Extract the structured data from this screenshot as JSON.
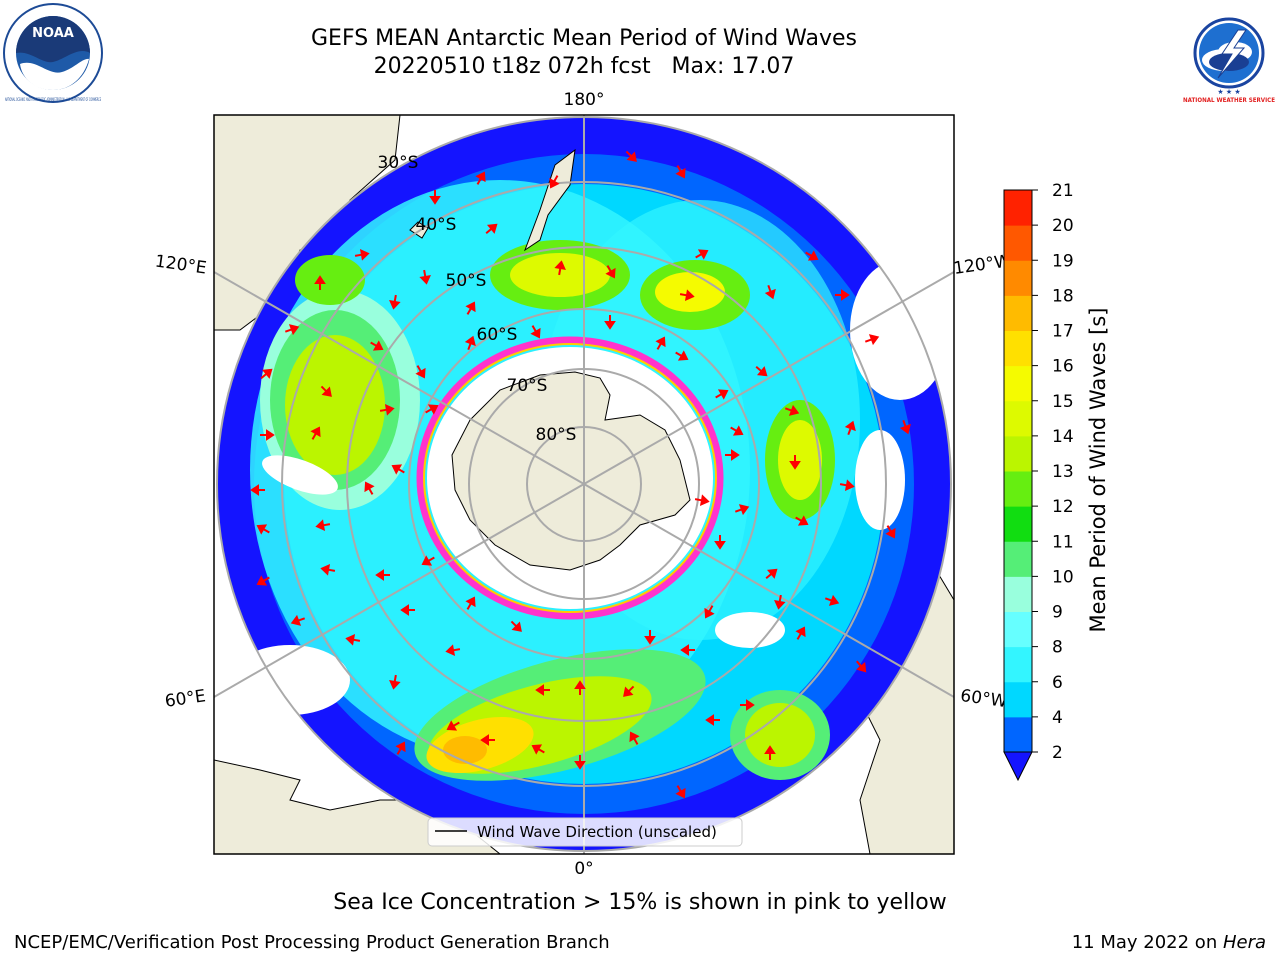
{
  "header": {
    "title_line1": "GEFS MEAN Antarctic Mean Period of Wind Waves",
    "title_line2": "20220510 t18z 072h fcst   Max: 17.07"
  },
  "logos": {
    "noaa": "NOAA",
    "noaa_ring_text": "NATIONAL OCEANIC AND ATMOSPHERIC ADMINISTRATION · U.S. DEPARTMENT OF COMMERCE",
    "nws_ring_text": "NATIONAL WEATHER SERVICE"
  },
  "map": {
    "projection": "south-polar-stereographic",
    "longitude_labels": {
      "top": "180°",
      "bottom": "0°",
      "upper_left": "120°E",
      "upper_right": "120°W",
      "lower_left": "60°E",
      "lower_right": "60°W"
    },
    "latitude_labels": [
      "30°S",
      "40°S",
      "50°S",
      "60°S",
      "70°S",
      "80°S"
    ],
    "legend": {
      "entry": "Wind Wave Direction (unscaled)"
    },
    "arrow_color": "#ff0000",
    "land_color": "#eeecda",
    "sea_ice_edge_colors": [
      "#ff33cc",
      "#ffcc00"
    ]
  },
  "colorbar": {
    "label": "Mean Period of Wind Waves [s]",
    "ticks": [
      "2",
      "4",
      "6",
      "8",
      "9",
      "10",
      "11",
      "12",
      "13",
      "14",
      "15",
      "16",
      "17",
      "18",
      "19",
      "20",
      "21"
    ],
    "colors": [
      "#0066ff",
      "#00d8ff",
      "#33f5ff",
      "#66ffff",
      "#99ffdd",
      "#55ee77",
      "#11dd11",
      "#66ee11",
      "#bbf500",
      "#ddfa00",
      "#f5fb00",
      "#ffe000",
      "#ffbb00",
      "#ff8a00",
      "#ff5800",
      "#ff2200"
    ],
    "extend_color": "#1414ff"
  },
  "notes": {
    "sea_ice": "Sea Ice Concentration > 15% is shown in pink to yellow"
  },
  "footer": {
    "left": "NCEP/EMC/Verification Post Processing Product Generation Branch",
    "date": "11 May 2022 on ",
    "host": "Hera"
  }
}
